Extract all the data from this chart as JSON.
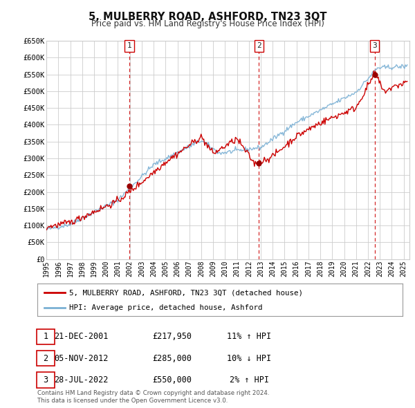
{
  "title": "5, MULBERRY ROAD, ASHFORD, TN23 3QT",
  "subtitle": "Price paid vs. HM Land Registry's House Price Index (HPI)",
  "plot_bg_color": "#ffffff",
  "fig_bg_color": "#ffffff",
  "grid_color": "#cccccc",
  "ylim": [
    0,
    650000
  ],
  "yticks": [
    0,
    50000,
    100000,
    150000,
    200000,
    250000,
    300000,
    350000,
    400000,
    450000,
    500000,
    550000,
    600000,
    650000
  ],
  "ytick_labels": [
    "£0",
    "£50K",
    "£100K",
    "£150K",
    "£200K",
    "£250K",
    "£300K",
    "£350K",
    "£400K",
    "£450K",
    "£500K",
    "£550K",
    "£600K",
    "£650K"
  ],
  "xlim_start": 1995.0,
  "xlim_end": 2025.5,
  "xtick_years": [
    1995,
    1996,
    1997,
    1998,
    1999,
    2000,
    2001,
    2002,
    2003,
    2004,
    2005,
    2006,
    2007,
    2008,
    2009,
    2010,
    2011,
    2012,
    2013,
    2014,
    2015,
    2016,
    2017,
    2018,
    2019,
    2020,
    2021,
    2022,
    2023,
    2024,
    2025
  ],
  "sale_color": "#cc0000",
  "hpi_color": "#7ab0d4",
  "sale_marker_color": "#990000",
  "vline_color": "#cc0000",
  "transactions": [
    {
      "num": 1,
      "date_str": "21-DEC-2001",
      "year": 2001.97,
      "price": 217950
    },
    {
      "num": 2,
      "date_str": "05-NOV-2012",
      "year": 2012.84,
      "price": 285000
    },
    {
      "num": 3,
      "date_str": "28-JUL-2022",
      "year": 2022.57,
      "price": 550000
    }
  ],
  "legend_label_sale": "5, MULBERRY ROAD, ASHFORD, TN23 3QT (detached house)",
  "legend_label_hpi": "HPI: Average price, detached house, Ashford",
  "footer1": "Contains HM Land Registry data © Crown copyright and database right 2024.",
  "footer2": "This data is licensed under the Open Government Licence v3.0.",
  "table_rows": [
    {
      "num": 1,
      "date": "21-DEC-2001",
      "price": "£217,950",
      "hpi": "11% ↑ HPI"
    },
    {
      "num": 2,
      "date": "05-NOV-2012",
      "price": "£285,000",
      "hpi": "10% ↓ HPI"
    },
    {
      "num": 3,
      "date": "28-JUL-2022",
      "price": "£550,000",
      "hpi": "2% ↑ HPI"
    }
  ]
}
